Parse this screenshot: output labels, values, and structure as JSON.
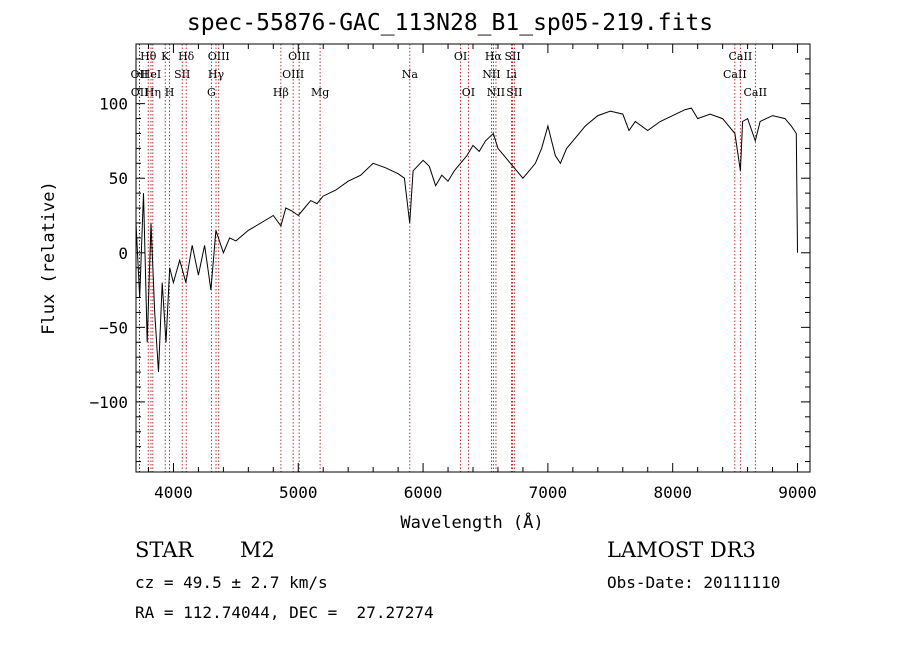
{
  "chart_data": {
    "type": "line",
    "title": "spec-55876-GAC_113N28_B1_sp05-219.fits",
    "xlabel": "Wavelength (Å)",
    "ylabel": "Flux (relative)",
    "xlim": [
      3700,
      9100
    ],
    "ylim": [
      -147,
      140
    ],
    "x_ticks": [
      4000,
      5000,
      6000,
      7000,
      8000,
      9000
    ],
    "x_tick_labels": [
      "4000",
      "5000",
      "6000",
      "7000",
      "8000",
      "9000"
    ],
    "y_ticks": [
      -100,
      -50,
      0,
      50,
      100
    ],
    "y_tick_labels": [
      "−100",
      "−50",
      "0",
      "50",
      "100"
    ],
    "series": [
      {
        "name": "spectrum",
        "x": [
          3700,
          3730,
          3760,
          3790,
          3820,
          3850,
          3880,
          3910,
          3940,
          3970,
          4000,
          4050,
          4100,
          4150,
          4200,
          4250,
          4300,
          4340,
          4400,
          4450,
          4500,
          4600,
          4700,
          4800,
          4861,
          4900,
          4950,
          5000,
          5050,
          5100,
          5150,
          5200,
          5300,
          5400,
          5500,
          5600,
          5700,
          5800,
          5850,
          5893,
          5920,
          6000,
          6050,
          6100,
          6150,
          6200,
          6250,
          6300,
          6350,
          6400,
          6450,
          6500,
          6563,
          6600,
          6650,
          6700,
          6750,
          6800,
          6850,
          6900,
          6950,
          7000,
          7030,
          7060,
          7100,
          7150,
          7200,
          7300,
          7400,
          7500,
          7600,
          7650,
          7700,
          7750,
          7800,
          7900,
          8000,
          8100,
          8150,
          8200,
          8300,
          8400,
          8498,
          8542,
          8560,
          8600,
          8662,
          8700,
          8800,
          8900,
          8950,
          8990,
          9000
        ],
        "y": [
          20,
          -30,
          40,
          -60,
          20,
          -40,
          -80,
          -20,
          -60,
          -10,
          -20,
          -5,
          -20,
          5,
          -15,
          5,
          -25,
          15,
          0,
          10,
          8,
          15,
          20,
          25,
          18,
          30,
          28,
          25,
          30,
          35,
          33,
          38,
          42,
          48,
          52,
          60,
          57,
          53,
          50,
          20,
          55,
          62,
          58,
          45,
          52,
          48,
          55,
          60,
          65,
          72,
          68,
          75,
          80,
          70,
          65,
          60,
          55,
          50,
          55,
          60,
          70,
          85,
          75,
          65,
          60,
          70,
          75,
          85,
          92,
          95,
          93,
          82,
          88,
          85,
          82,
          88,
          92,
          96,
          97,
          90,
          93,
          90,
          80,
          55,
          88,
          90,
          75,
          88,
          92,
          90,
          85,
          80,
          0
        ]
      }
    ],
    "lines": [
      {
        "name": "OII",
        "x": 3727,
        "row": 2
      },
      {
        "name": "OII",
        "x": 3729,
        "row": 3
      },
      {
        "name": "Hθ",
        "x": 3798,
        "row": 1
      },
      {
        "name": "HeI",
        "x": 3820,
        "row": 2
      },
      {
        "name": "Hη",
        "x": 3835,
        "row": 3
      },
      {
        "name": "K",
        "x": 3934,
        "row": 1
      },
      {
        "name": "SII",
        "x": 4070,
        "row": 2
      },
      {
        "name": "H",
        "x": 3969,
        "row": 3
      },
      {
        "name": "Hδ",
        "x": 4102,
        "row": 1
      },
      {
        "name": "OIII",
        "x": 4363,
        "row": 1
      },
      {
        "name": "Hγ",
        "x": 4341,
        "row": 2
      },
      {
        "name": "G",
        "x": 4304,
        "row": 3
      },
      {
        "name": "OIII",
        "x": 5007,
        "row": 1
      },
      {
        "name": "OIII",
        "x": 4959,
        "row": 2
      },
      {
        "name": "Hβ",
        "x": 4861,
        "row": 3
      },
      {
        "name": "Mg",
        "x": 5175,
        "row": 3
      },
      {
        "name": "Na",
        "x": 5894,
        "row": 2
      },
      {
        "name": "OI",
        "x": 6300,
        "row": 1
      },
      {
        "name": "OI",
        "x": 6363,
        "row": 3
      },
      {
        "name": "Hα",
        "x": 6563,
        "row": 1
      },
      {
        "name": "NII",
        "x": 6548,
        "row": 2
      },
      {
        "name": "NII",
        "x": 6584,
        "row": 3
      },
      {
        "name": "SII",
        "x": 6717,
        "row": 1
      },
      {
        "name": "Li",
        "x": 6708,
        "row": 2
      },
      {
        "name": "SII",
        "x": 6731,
        "row": 3
      },
      {
        "name": "CaII",
        "x": 8542,
        "row": 1
      },
      {
        "name": "CaII",
        "x": 8498,
        "row": 2
      },
      {
        "name": "CaII",
        "x": 8662,
        "row": 3
      }
    ]
  },
  "info": {
    "object_class": "STAR",
    "subclass": "M2",
    "survey": "LAMOST DR3",
    "cz": "cz = 49.5 ± 2.7 km/s",
    "obs_date": "Obs-Date: 20111110",
    "coords": "RA = 112.74044, DEC =  27.27274"
  }
}
